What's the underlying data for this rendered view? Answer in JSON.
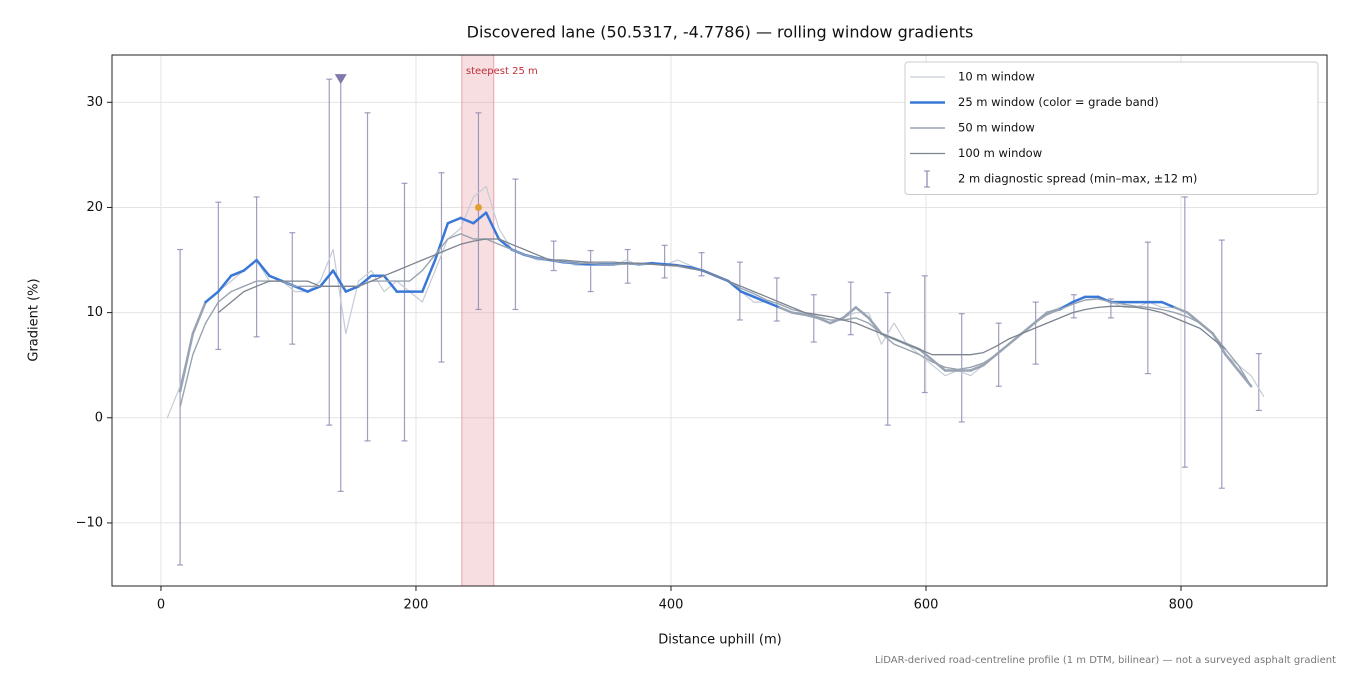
{
  "chart_data": {
    "type": "line",
    "title": "Discovered lane (50.5317, -4.7786) — rolling window gradients",
    "x_label": "Distance uphill (m)",
    "y_label": "Gradient (%)",
    "footnote": "LiDAR-derived road-centreline profile (1 m DTM, bilinear) — not a surveyed asphalt gradient",
    "xlim": [
      -38.4,
      914.5
    ],
    "ylim": [
      -16,
      34.5
    ],
    "xticks": [
      0,
      200,
      400,
      600,
      800
    ],
    "yticks": [
      {
        "value": -10,
        "label": "−10"
      },
      0,
      10,
      20,
      30
    ],
    "grid": true,
    "legend": "upper right",
    "x": [
      5,
      15,
      25,
      35,
      45,
      55,
      65,
      75,
      85,
      95,
      105,
      115,
      125,
      135,
      145,
      155,
      165,
      175,
      185,
      195,
      205,
      215,
      225,
      235,
      245,
      255,
      265,
      275,
      285,
      295,
      305,
      315,
      325,
      335,
      345,
      355,
      365,
      375,
      385,
      395,
      405,
      415,
      425,
      435,
      445,
      455,
      465,
      475,
      485,
      495,
      505,
      515,
      525,
      535,
      545,
      555,
      565,
      575,
      585,
      595,
      605,
      615,
      625,
      635,
      645,
      655,
      665,
      675,
      685,
      695,
      705,
      715,
      725,
      735,
      745,
      755,
      765,
      775,
      785,
      795,
      805,
      815,
      825,
      835,
      845,
      855,
      865
    ],
    "series": [
      {
        "name": "10 m window",
        "color": "#c5ccd6",
        "values": [
          0,
          3,
          8,
          11,
          12,
          13,
          14,
          15,
          13,
          13,
          12,
          12,
          13,
          16,
          8,
          13,
          14,
          12,
          13,
          12,
          11,
          14,
          17,
          18,
          21,
          22,
          18,
          16,
          15.5,
          15,
          15,
          15,
          14.5,
          14.5,
          14.5,
          14.5,
          15,
          14.5,
          14.8,
          14.5,
          15,
          14.5,
          14,
          13.5,
          13,
          12,
          11,
          11,
          10.5,
          10,
          10,
          9.5,
          9,
          9.5,
          10,
          10,
          7,
          9,
          7,
          6,
          5,
          4,
          4.5,
          4,
          5,
          6,
          7,
          8,
          9,
          10,
          10.5,
          11,
          11.5,
          11.5,
          11,
          10.5,
          10.5,
          11,
          10.5,
          10.5,
          10,
          9,
          8,
          6,
          5,
          4,
          2
        ]
      },
      {
        "name": "25 m window (color = grade band)",
        "color": "#3a78d8",
        "grade_band": {
          "threshold": 10.4,
          "below_color": "#98a4b4"
        },
        "values": [
          null,
          2.5,
          8,
          11,
          12,
          13.5,
          14,
          15,
          13.5,
          13,
          12.5,
          12,
          12.5,
          14,
          12,
          12.5,
          13.5,
          13.5,
          12,
          12,
          12,
          15,
          18.5,
          19,
          18.5,
          19.5,
          17,
          16,
          15.5,
          15.2,
          15,
          14.8,
          14.7,
          14.6,
          14.6,
          14.6,
          14.7,
          14.6,
          14.7,
          14.6,
          14.5,
          14.3,
          14,
          13.5,
          13,
          12,
          11.5,
          11,
          10.5,
          10,
          9.8,
          9.5,
          9,
          9.5,
          10.5,
          9.5,
          8,
          7.5,
          7,
          6.5,
          5.5,
          4.5,
          4.5,
          4.5,
          5,
          6,
          7,
          8,
          9,
          10,
          10.3,
          11,
          11.5,
          11.5,
          11,
          11,
          11,
          11,
          11,
          10.5,
          10,
          9,
          8,
          6,
          4.5,
          3,
          null
        ]
      },
      {
        "name": "50 m window",
        "color": "#9aa4b0",
        "values": [
          null,
          1,
          6,
          9,
          11,
          12,
          12.5,
          13,
          13,
          13,
          12.5,
          12.5,
          12.5,
          12.5,
          12.5,
          12.5,
          13,
          13,
          13,
          13,
          14,
          15.5,
          17,
          17.5,
          17,
          17,
          16.5,
          16,
          15.5,
          15.2,
          15,
          14.8,
          14.7,
          14.7,
          14.6,
          14.6,
          14.6,
          14.6,
          14.6,
          14.5,
          14.4,
          14.2,
          14,
          13.5,
          13,
          12.3,
          11.8,
          11.2,
          10.8,
          10.3,
          10,
          9.6,
          9.3,
          9.3,
          9.5,
          9,
          8,
          7,
          6.5,
          6,
          5.3,
          4.8,
          4.6,
          4.8,
          5.2,
          6,
          7,
          8,
          9,
          9.8,
          10.3,
          10.8,
          11.2,
          11.3,
          11,
          10.8,
          10.6,
          10.5,
          10.3,
          10,
          9.6,
          9,
          8,
          6.5,
          5,
          3,
          null
        ]
      },
      {
        "name": "100 m window",
        "color": "#7c8490",
        "values": [
          null,
          null,
          null,
          null,
          10,
          11,
          12,
          12.5,
          13,
          13,
          13,
          13,
          12.5,
          12.5,
          12.5,
          12.5,
          13,
          13.5,
          14,
          14.5,
          15,
          15.5,
          16,
          16.5,
          16.8,
          17,
          17,
          16.5,
          16,
          15.5,
          15,
          15,
          14.9,
          14.8,
          14.8,
          14.8,
          14.7,
          14.7,
          14.6,
          14.5,
          14.5,
          14.2,
          14,
          13.5,
          13,
          12.5,
          12,
          11.5,
          11,
          10.5,
          10,
          9.8,
          9.6,
          9.3,
          9,
          8.5,
          8,
          7.5,
          7,
          6.5,
          6,
          6,
          6,
          6,
          6.2,
          6.8,
          7.5,
          8,
          8.5,
          9,
          9.5,
          10,
          10.3,
          10.5,
          10.6,
          10.6,
          10.5,
          10.3,
          10,
          9.5,
          9,
          8.5,
          7.5,
          6.5,
          null,
          null,
          null
        ]
      }
    ],
    "errorbars": {
      "name": "2 m diagnostic spread (min–max, ±12 m)",
      "color": "#8a86b0",
      "x": [
        15,
        45,
        75,
        103,
        132,
        141,
        162,
        191,
        220,
        249,
        278,
        308,
        337,
        366,
        395,
        424,
        454,
        483,
        512,
        541,
        570,
        599,
        628,
        657,
        686,
        716,
        745,
        774,
        803,
        832,
        861
      ],
      "low": [
        -14,
        6.5,
        7.7,
        7,
        -0.7,
        -7,
        -2.2,
        -2.2,
        5.3,
        10.3,
        10.3,
        14,
        12,
        12.8,
        13.3,
        13.5,
        9.3,
        9.2,
        7.2,
        7.9,
        -0.7,
        2.4,
        -0.4,
        3,
        5.1,
        9.5,
        9.5,
        4.2,
        -4.7,
        -6.7,
        0.7
      ],
      "high": [
        16,
        20.5,
        21,
        17.6,
        32.2,
        32.2,
        29,
        22.3,
        23.3,
        29,
        22.7,
        16.8,
        15.9,
        16,
        16.4,
        15.7,
        14.8,
        13.3,
        11.7,
        12.9,
        11.9,
        13.5,
        9.9,
        9,
        11,
        11.7,
        11.3,
        16.7,
        21,
        16.9,
        6.1
      ]
    },
    "clip_marker": {
      "x": 141,
      "y": 32.2,
      "color": "#8078a8"
    },
    "steepest": {
      "label": "steepest 25 m",
      "span": [
        236,
        261
      ],
      "color": "#e8a0a8",
      "label_color": "#c0303a",
      "point": {
        "x": 249,
        "y": 20,
        "color": "#e0a030"
      }
    }
  }
}
